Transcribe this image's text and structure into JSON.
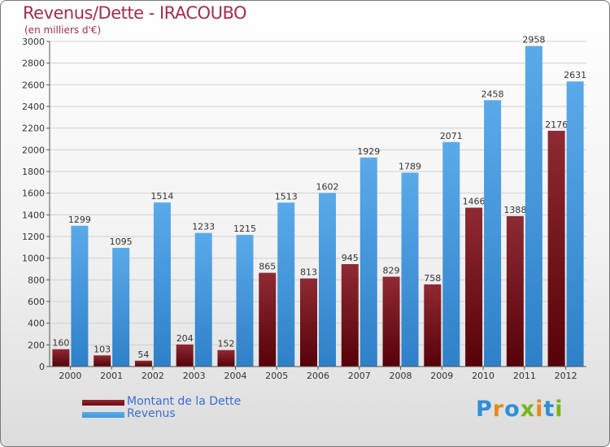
{
  "header": {
    "title": "Revenus/Dette - IRACOUBO",
    "subtitle": "(en milliers d'€)"
  },
  "legend": [
    {
      "label": "Montant de la Dette",
      "color": "#6d0a12"
    },
    {
      "label": "Revenus",
      "color": "#3f97e0"
    }
  ],
  "logo": {
    "text": "Proxiti"
  },
  "chart_data": {
    "type": "bar",
    "title": "Revenus/Dette - IRACOUBO",
    "subtitle": "(en milliers d'€)",
    "xlabel": "",
    "ylabel": "",
    "ylim": [
      0,
      3000
    ],
    "yticks": [
      0,
      200,
      400,
      600,
      800,
      1000,
      1200,
      1400,
      1600,
      1800,
      2000,
      2200,
      2400,
      2600,
      2800,
      3000
    ],
    "grid": true,
    "legend_position": "bottom-left",
    "categories": [
      "2000",
      "2001",
      "2002",
      "2003",
      "2004",
      "2005",
      "2006",
      "2007",
      "2008",
      "2009",
      "2010",
      "2011",
      "2012"
    ],
    "series": [
      {
        "name": "Montant de la Dette",
        "color": "#6d0a12",
        "values": [
          160,
          103,
          54,
          204,
          152,
          865,
          813,
          945,
          829,
          758,
          1466,
          1388,
          2176
        ],
        "labels": [
          "160",
          "103",
          "54",
          "204",
          "152",
          "865",
          "813",
          "945",
          "829",
          "758",
          "1466",
          "1388",
          "2176"
        ]
      },
      {
        "name": "Revenus",
        "color": "#3f97e0",
        "values": [
          1299,
          1095,
          1514,
          1233,
          1215,
          1513,
          1602,
          1929,
          1789,
          2071,
          2458,
          2958,
          2631
        ],
        "labels": [
          "1299",
          "1095",
          "1514",
          "1233",
          "1215",
          "1513",
          "1602",
          "1929",
          "1789",
          "2071",
          "2458",
          "2958",
          "2631"
        ]
      }
    ]
  }
}
